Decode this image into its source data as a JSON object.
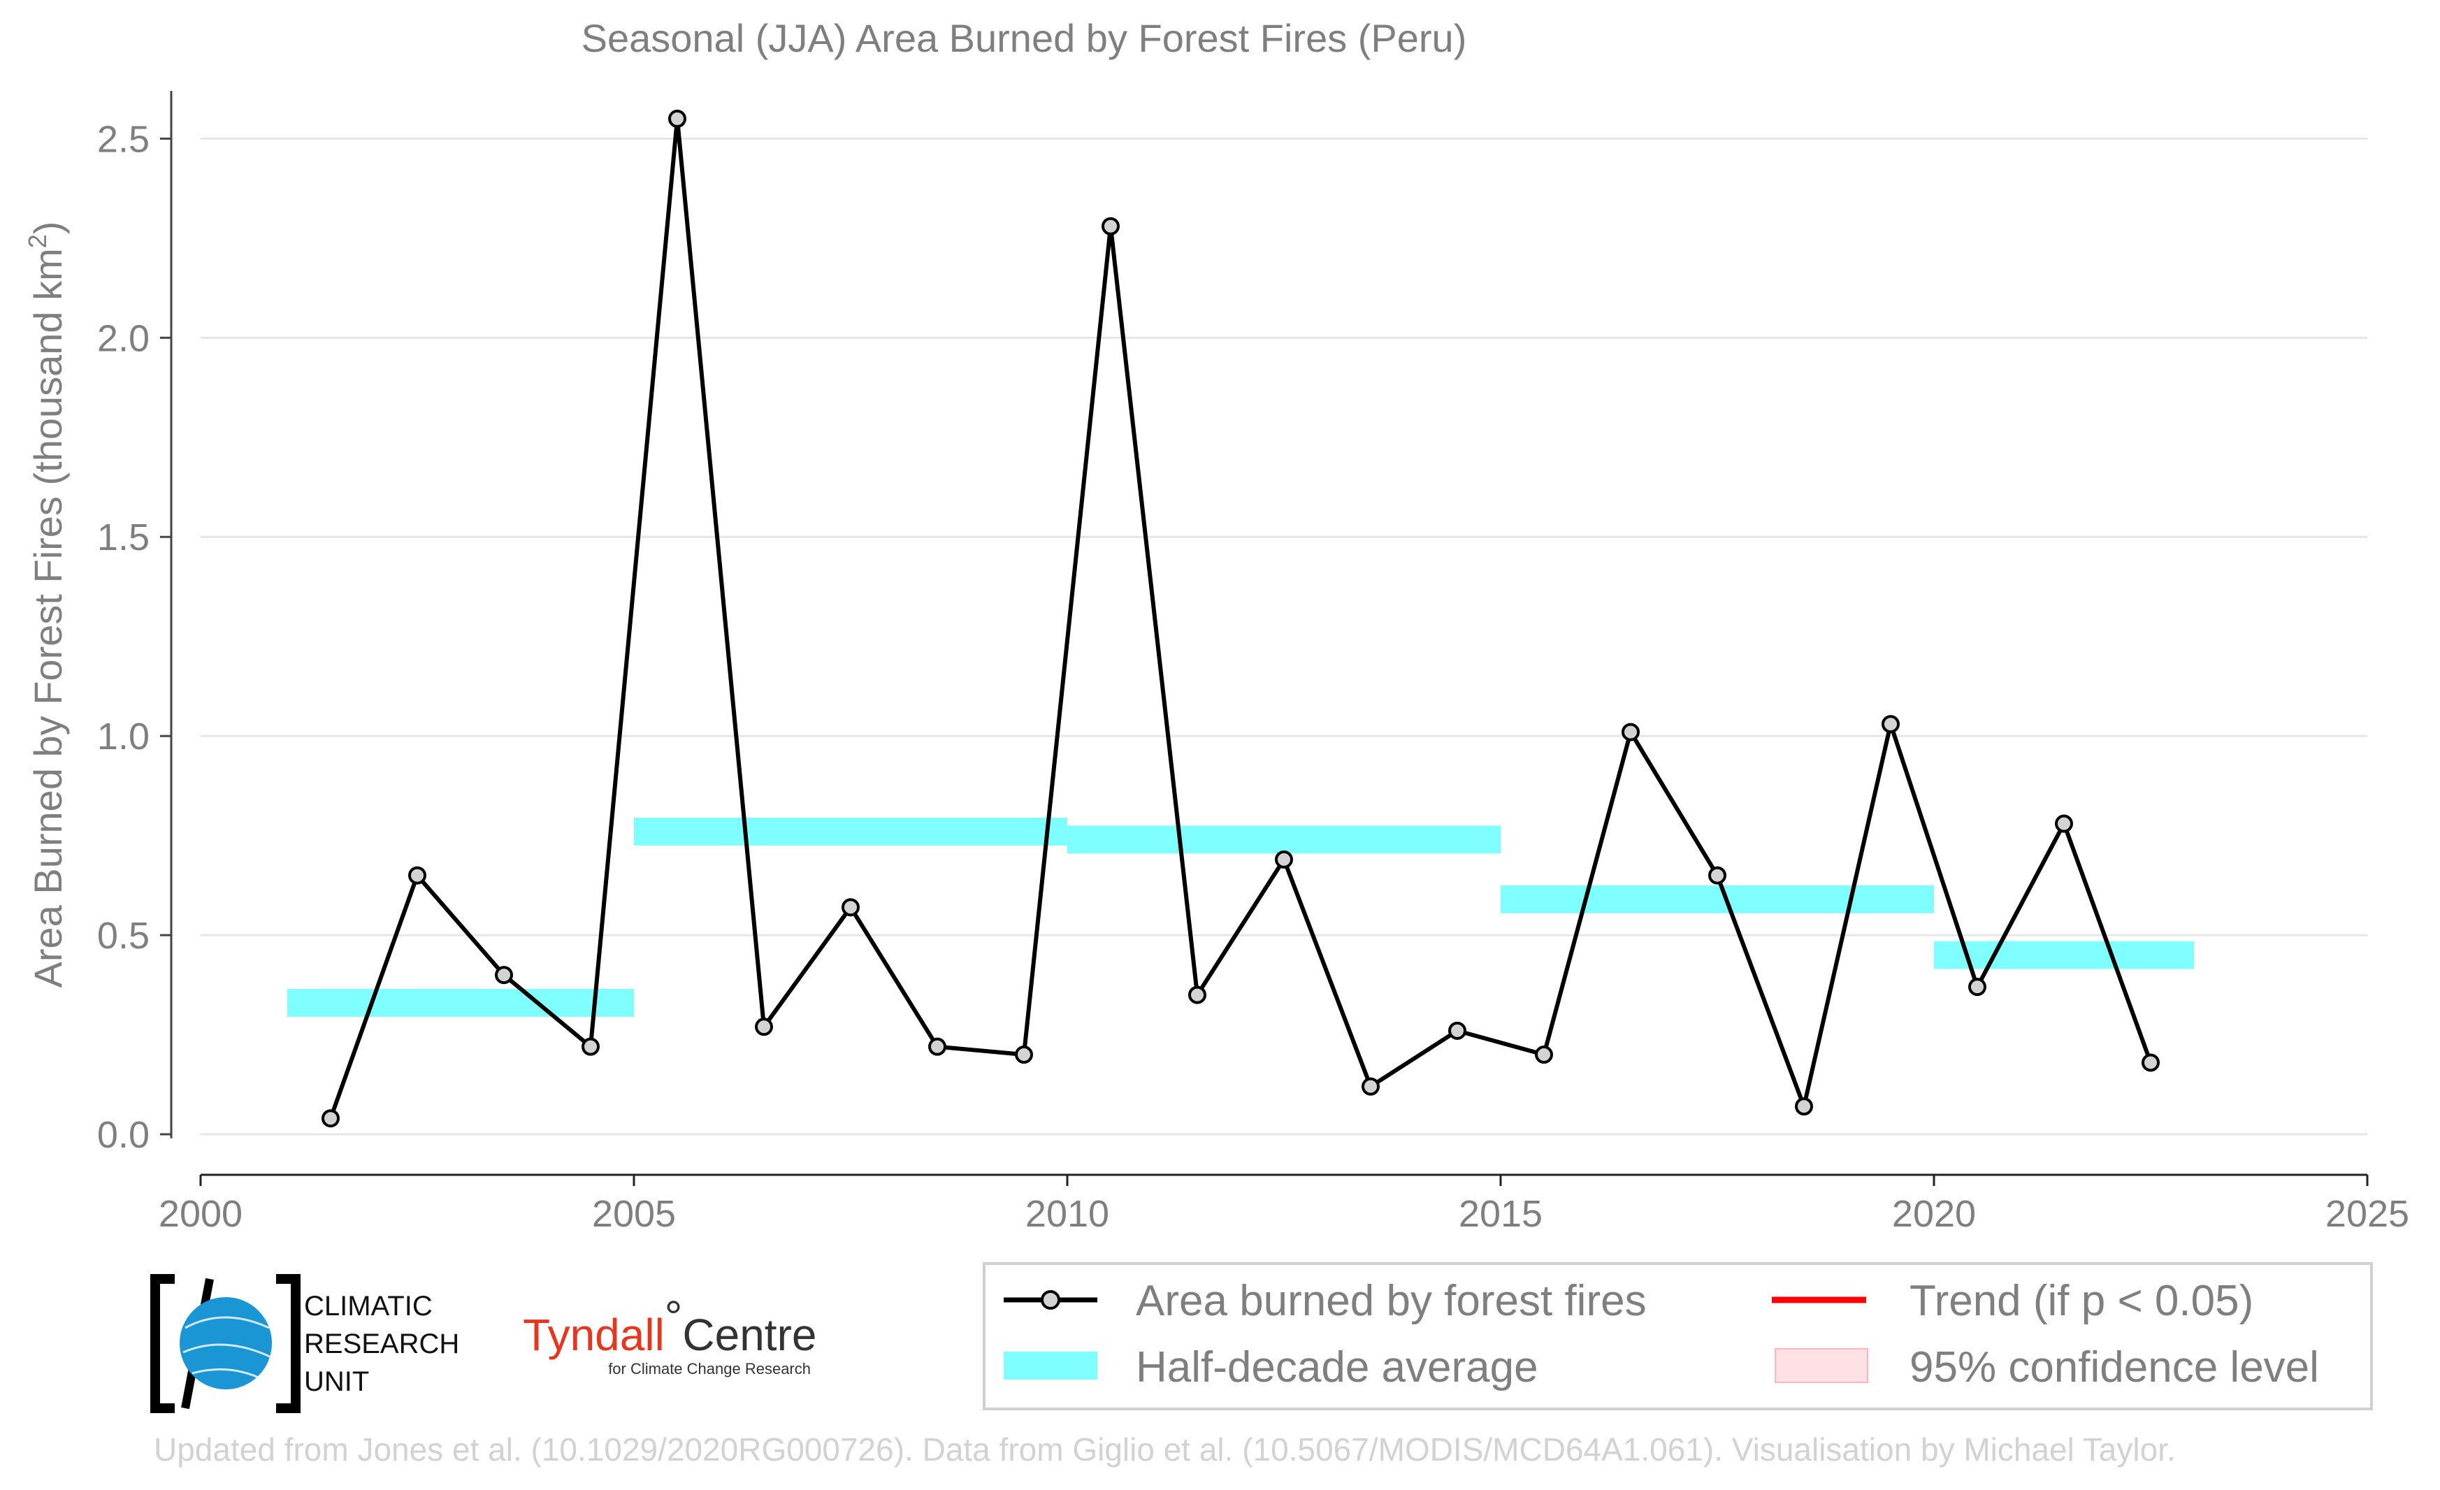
{
  "chart_data": {
    "type": "line",
    "title": "Seasonal (JJA) Area Burned by Forest Fires (Peru)",
    "xlabel": "",
    "ylabel_main": "Area Burned by Forest Fires (thousand km",
    "ylabel_sup": "2",
    "ylabel_close": ")",
    "xlim": [
      2000,
      2025
    ],
    "ylim": [
      -0.1,
      2.62
    ],
    "x_ticks": [
      2000,
      2005,
      2010,
      2015,
      2020,
      2025
    ],
    "x_tick_labels": [
      "2000",
      "2005",
      "2010",
      "2015",
      "2020",
      "2025"
    ],
    "y_ticks": [
      0.0,
      0.5,
      1.0,
      1.5,
      2.0,
      2.5
    ],
    "y_tick_labels": [
      "0.0",
      "0.5",
      "1.0",
      "1.5",
      "2.0",
      "2.5"
    ],
    "grid": "horizontal",
    "legend_position": "bottom-right",
    "series": [
      {
        "name": "Area burned by forest fires",
        "color": "#000000",
        "marker_fill": "#d3d3d3",
        "x": [
          2001.5,
          2002.5,
          2003.5,
          2004.5,
          2005.5,
          2006.5,
          2007.5,
          2008.5,
          2009.5,
          2010.5,
          2011.5,
          2012.5,
          2013.5,
          2014.5,
          2015.5,
          2016.5,
          2017.5,
          2018.5,
          2019.5,
          2020.5,
          2021.5,
          2022.5
        ],
        "y": [
          0.04,
          0.65,
          0.4,
          0.22,
          2.55,
          0.27,
          0.57,
          0.22,
          0.2,
          2.28,
          0.35,
          0.69,
          0.12,
          0.26,
          0.2,
          1.01,
          0.65,
          0.07,
          1.03,
          0.37,
          0.78,
          0.18
        ]
      }
    ],
    "half_decade_averages": {
      "name": "Half-decade average",
      "color": "#7fffff",
      "segments": [
        {
          "x_start": 2001,
          "x_end": 2005,
          "value": 0.33
        },
        {
          "x_start": 2005,
          "x_end": 2010,
          "value": 0.76
        },
        {
          "x_start": 2010,
          "x_end": 2015,
          "value": 0.74
        },
        {
          "x_start": 2015,
          "x_end": 2020,
          "value": 0.59
        },
        {
          "x_start": 2020,
          "x_end": 2023,
          "value": 0.45
        }
      ]
    },
    "legend": [
      {
        "label": "Area burned by forest fires",
        "kind": "line-marker",
        "color": "#000000"
      },
      {
        "label": "Trend (if p < 0.05)",
        "kind": "line",
        "color": "#ff0000"
      },
      {
        "label": "Half-decade average",
        "kind": "band",
        "color": "#7fffff"
      },
      {
        "label": "95% confidence level",
        "kind": "box",
        "color": "#ffe0e4"
      }
    ]
  },
  "logos": {
    "cru_line1": "CLIMATIC",
    "cru_line2": "RESEARCH",
    "cru_line3": "UNIT",
    "tyndall_name": "Tyndall",
    "tyndall_degree": "°",
    "tyndall_centre": "Centre",
    "tyndall_sub": "for Climate Change Research"
  },
  "source_note": "Updated from Jones et al. (10.1029/2020RG000726). Data from Giglio et al. (10.5067/MODIS/MCD64A1.061). Visualisation by Michael Taylor."
}
